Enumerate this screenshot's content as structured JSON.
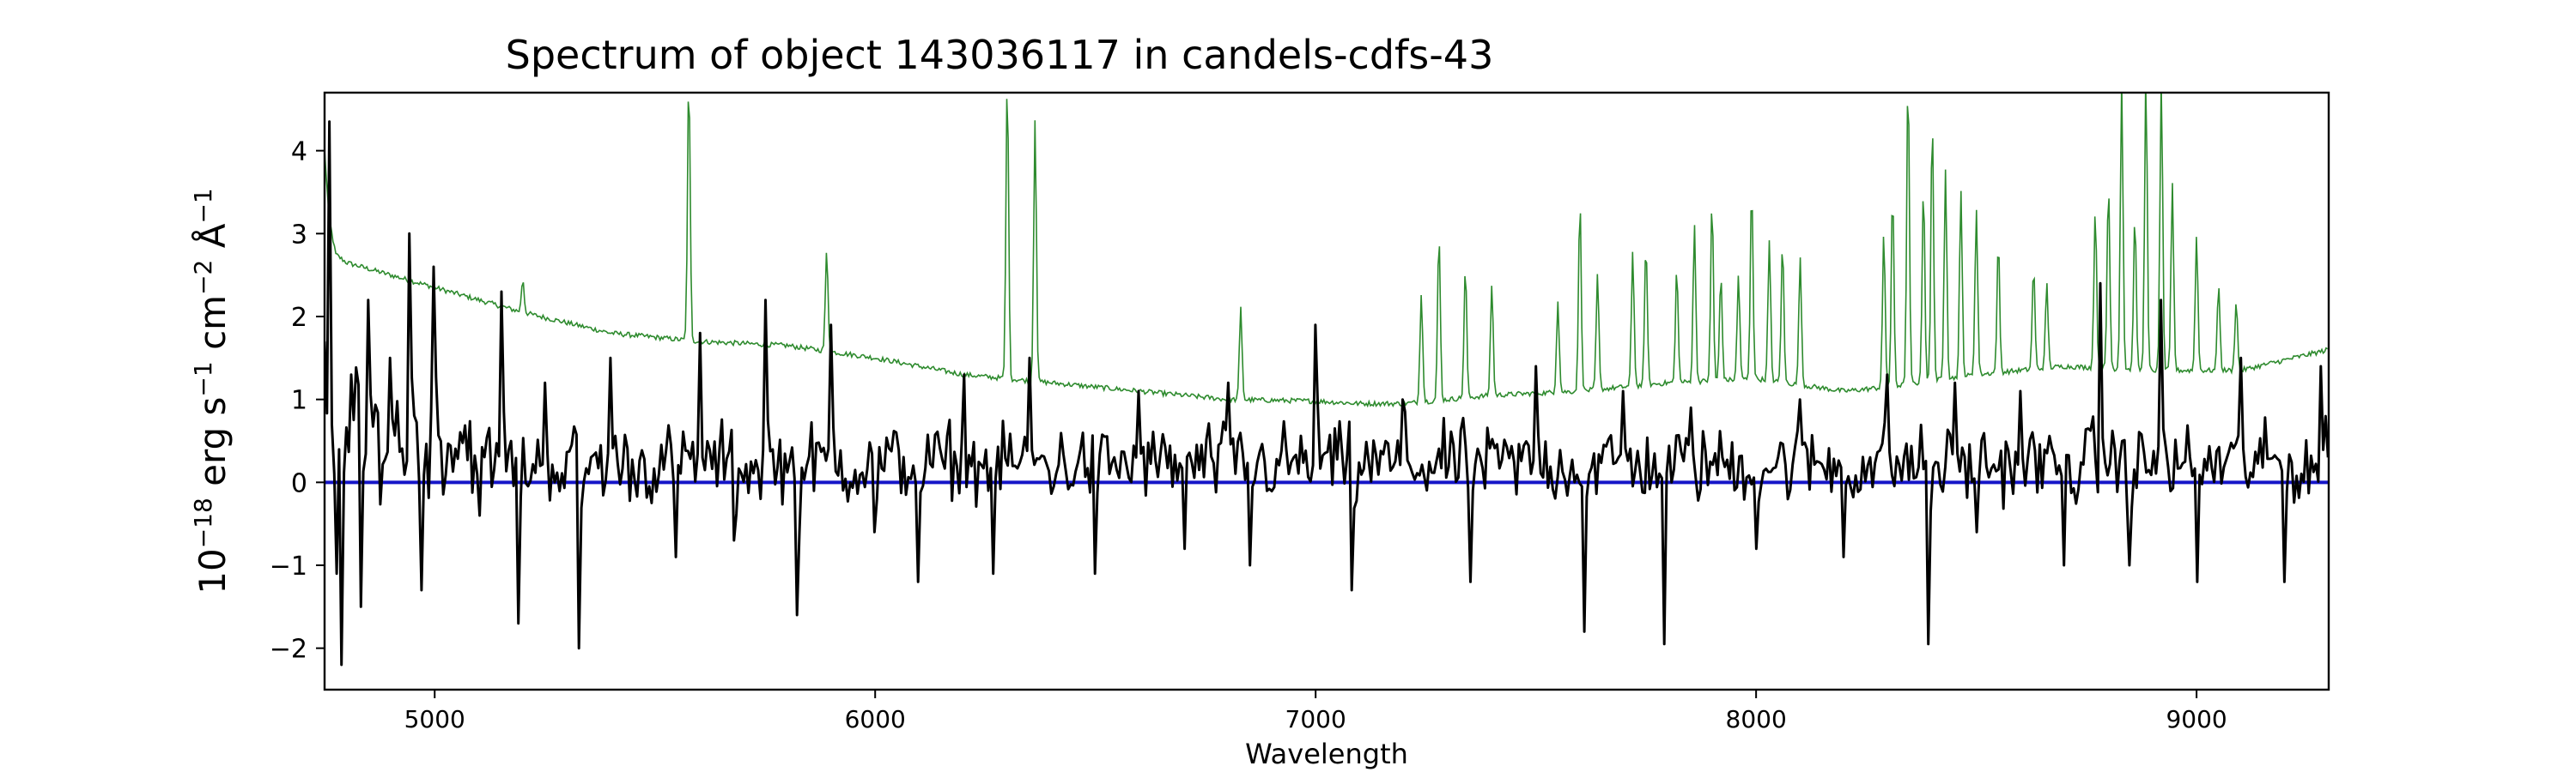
{
  "chart_data": {
    "type": "line",
    "title": "Spectrum of object 143036117 in candels-cdfs-43",
    "xlabel": "Wavelength",
    "ylabel": "10",
    "ylabel_parts": {
      "base": "10",
      "exp": "−18",
      "unit1": " erg s",
      "exp1": "−1",
      "unit2": " cm",
      "exp2": "−2",
      "unit3": " Å",
      "exp3": "−1"
    },
    "xlim": [
      4750,
      9300
    ],
    "ylim": [
      -2.5,
      4.7
    ],
    "xticks": [
      5000,
      6000,
      7000,
      8000,
      9000
    ],
    "xtick_labels": [
      "5000",
      "6000",
      "7000",
      "8000",
      "9000"
    ],
    "yticks": [
      -2,
      -1,
      0,
      1,
      2,
      3,
      4
    ],
    "ytick_labels": [
      "−2",
      "−1",
      "0",
      "1",
      "2",
      "3",
      "4"
    ],
    "grid": false,
    "colors": {
      "flux": "#000000",
      "error": "#2e8b2e",
      "zero": "#1515c8"
    },
    "series": [
      {
        "role": "flux",
        "description_points": [
          [
            4750,
            1.7
          ],
          [
            4760,
            4.35
          ],
          [
            4775,
            -1.1
          ],
          [
            4790,
            -2.2
          ],
          [
            4810,
            1.3
          ],
          [
            4830,
            -1.5
          ],
          [
            4850,
            2.2
          ],
          [
            4900,
            1.5
          ],
          [
            4940,
            3.0
          ],
          [
            4970,
            -1.3
          ],
          [
            5000,
            2.6
          ],
          [
            5100,
            -0.4
          ],
          [
            5150,
            2.3
          ],
          [
            5190,
            -1.7
          ],
          [
            5250,
            1.2
          ],
          [
            5330,
            -2.0
          ],
          [
            5400,
            1.5
          ],
          [
            5550,
            -0.9
          ],
          [
            5600,
            1.8
          ],
          [
            5680,
            -0.7
          ],
          [
            5750,
            2.2
          ],
          [
            5820,
            -1.6
          ],
          [
            5900,
            1.9
          ],
          [
            6000,
            -0.6
          ],
          [
            6100,
            -1.2
          ],
          [
            6200,
            1.3
          ],
          [
            6270,
            -1.1
          ],
          [
            6350,
            1.5
          ],
          [
            6500,
            -1.1
          ],
          [
            6600,
            1.1
          ],
          [
            6700,
            -0.8
          ],
          [
            6800,
            1.2
          ],
          [
            6850,
            -1.0
          ],
          [
            7000,
            1.9
          ],
          [
            7080,
            -1.3
          ],
          [
            7200,
            1.0
          ],
          [
            7350,
            -1.2
          ],
          [
            7500,
            1.4
          ],
          [
            7610,
            -1.8
          ],
          [
            7700,
            1.1
          ],
          [
            7790,
            -1.95
          ],
          [
            7850,
            0.9
          ],
          [
            8000,
            -0.8
          ],
          [
            8100,
            1.0
          ],
          [
            8200,
            -0.9
          ],
          [
            8300,
            1.3
          ],
          [
            8390,
            -1.95
          ],
          [
            8450,
            1.2
          ],
          [
            8500,
            -0.6
          ],
          [
            8600,
            1.1
          ],
          [
            8700,
            -1.0
          ],
          [
            8780,
            2.4
          ],
          [
            8850,
            -1.0
          ],
          [
            8920,
            2.2
          ],
          [
            9000,
            -1.2
          ],
          [
            9100,
            1.5
          ],
          [
            9200,
            -1.2
          ],
          [
            9280,
            1.4
          ],
          [
            9300,
            0.3
          ]
        ]
      },
      {
        "role": "error",
        "continuum": [
          [
            4750,
            4.0
          ],
          [
            4760,
            3.2
          ],
          [
            4775,
            2.75
          ],
          [
            4800,
            2.65
          ],
          [
            4900,
            2.5
          ],
          [
            5000,
            2.35
          ],
          [
            5200,
            2.05
          ],
          [
            5400,
            1.8
          ],
          [
            5600,
            1.7
          ],
          [
            5800,
            1.65
          ],
          [
            6000,
            1.5
          ],
          [
            6200,
            1.3
          ],
          [
            6400,
            1.2
          ],
          [
            6600,
            1.1
          ],
          [
            6800,
            1.0
          ],
          [
            7000,
            0.98
          ],
          [
            7100,
            0.95
          ],
          [
            7200,
            0.95
          ],
          [
            7400,
            1.05
          ],
          [
            7600,
            1.1
          ],
          [
            7800,
            1.2
          ],
          [
            8000,
            1.25
          ],
          [
            8200,
            1.1
          ],
          [
            8300,
            1.15
          ],
          [
            8500,
            1.3
          ],
          [
            8700,
            1.4
          ],
          [
            8900,
            1.35
          ],
          [
            9100,
            1.35
          ],
          [
            9300,
            1.6
          ]
        ],
        "lines": [
          [
            5200,
            2.45
          ],
          [
            5577,
            4.9
          ],
          [
            5890,
            2.8
          ],
          [
            6300,
            4.9
          ],
          [
            6363,
            4.4
          ],
          [
            6830,
            2.1
          ],
          [
            7240,
            2.3
          ],
          [
            7280,
            3.0
          ],
          [
            7340,
            2.6
          ],
          [
            7400,
            2.4
          ],
          [
            7550,
            2.2
          ],
          [
            7600,
            3.4
          ],
          [
            7640,
            2.5
          ],
          [
            7720,
            2.8
          ],
          [
            7750,
            2.9
          ],
          [
            7820,
            2.6
          ],
          [
            7860,
            3.1
          ],
          [
            7900,
            3.4
          ],
          [
            7920,
            2.5
          ],
          [
            7960,
            2.5
          ],
          [
            7990,
            3.6
          ],
          [
            8030,
            2.9
          ],
          [
            8060,
            2.9
          ],
          [
            8100,
            2.7
          ],
          [
            8290,
            3.0
          ],
          [
            8310,
            3.5
          ],
          [
            8345,
            4.9
          ],
          [
            8380,
            3.6
          ],
          [
            8400,
            4.4
          ],
          [
            8430,
            3.8
          ],
          [
            8465,
            3.5
          ],
          [
            8500,
            3.3
          ],
          [
            8550,
            2.9
          ],
          [
            8630,
            2.6
          ],
          [
            8660,
            2.4
          ],
          [
            8770,
            3.3
          ],
          [
            8800,
            3.6
          ],
          [
            8830,
            4.9
          ],
          [
            8860,
            3.2
          ],
          [
            8885,
            4.9
          ],
          [
            8920,
            4.9
          ],
          [
            8945,
            3.6
          ],
          [
            9000,
            3.0
          ],
          [
            9050,
            2.4
          ],
          [
            9090,
            2.2
          ]
        ]
      },
      {
        "role": "zero",
        "x": [
          4750,
          9300
        ],
        "values": [
          0,
          0
        ]
      }
    ]
  }
}
